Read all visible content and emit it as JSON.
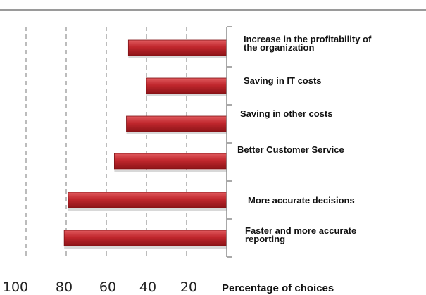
{
  "chart_data": {
    "type": "bar",
    "orientation": "horizontal",
    "x_direction": "reversed",
    "categories": [
      [
        "Increase in the profitability of",
        "the organization"
      ],
      [
        "Saving in IT costs"
      ],
      [
        "Saving in other costs"
      ],
      [
        "Better Customer Service"
      ],
      [
        "More accurate decisions"
      ],
      [
        "Faster and more accurate",
        "reporting"
      ]
    ],
    "values": [
      49,
      40,
      50,
      56,
      79,
      81
    ],
    "xlabel": "Percentage of choices",
    "xlim": [
      0,
      100
    ],
    "x_ticks": [
      "100",
      "80",
      "60",
      "40",
      "20"
    ],
    "x_tick_values": [
      100,
      80,
      60,
      40,
      20
    ],
    "grid": "vertical-dashed",
    "bar_color": "#c0272d"
  }
}
